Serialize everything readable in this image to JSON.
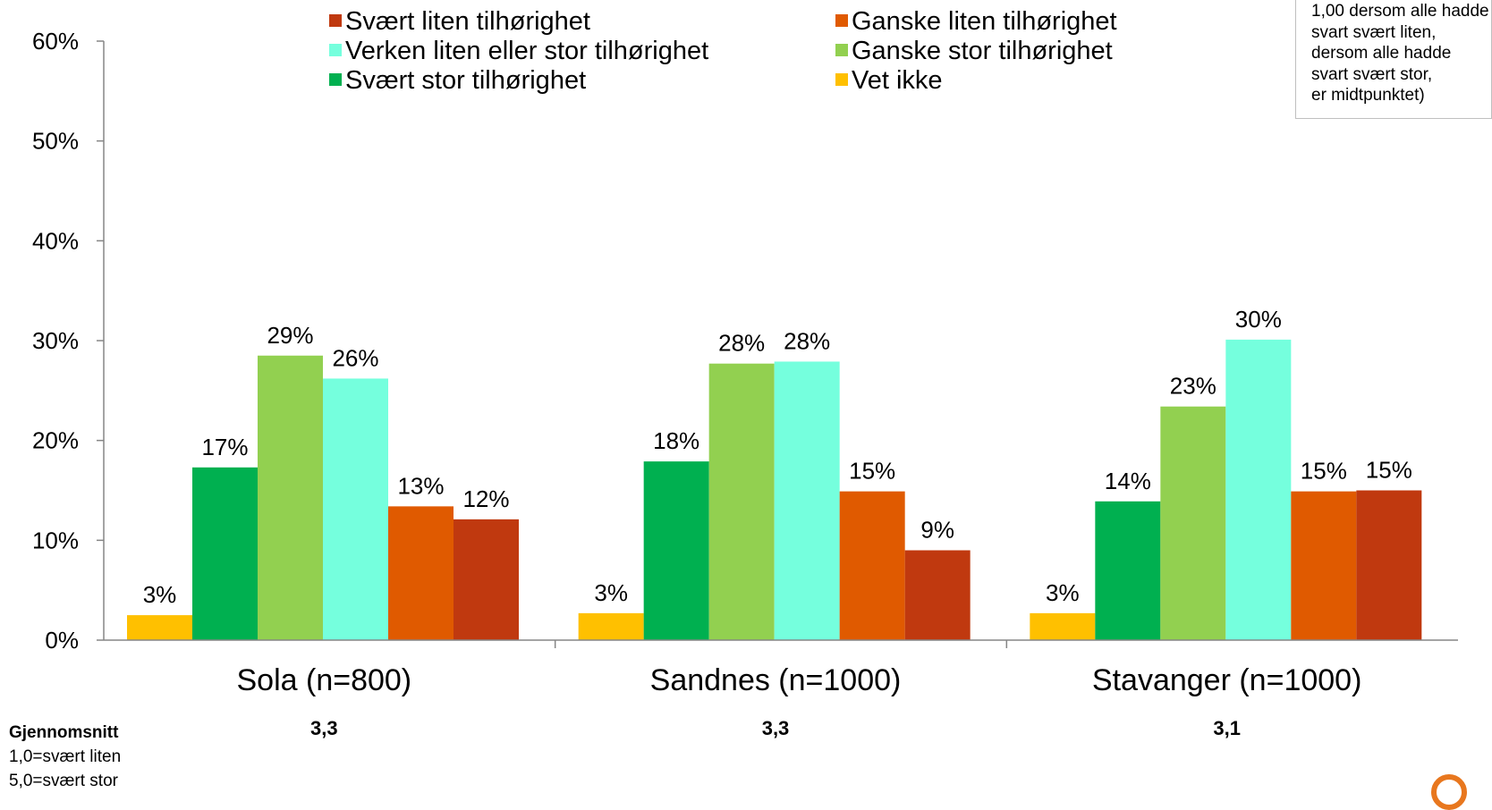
{
  "note": {
    "lines": [
      "1,00 dersom alle hadde",
      "svart  svært liten,",
      "dersom alle hadde",
      "svart svært stor,",
      "er midtpunktet)"
    ]
  },
  "averages": {
    "title": "Gjennomsnitt",
    "scale_low": "1,0=svært liten",
    "scale_high": "5,0=svært stor",
    "values": [
      "3,3",
      "3,3",
      "3,1"
    ]
  },
  "chart_data": {
    "type": "bar",
    "categories": [
      "Sola (n=800)",
      "Sandnes (n=1000)",
      "Stavanger (n=1000)"
    ],
    "series": [
      {
        "name": "Vet ikke",
        "color": "#ffc000",
        "values": [
          2.5,
          2.7,
          2.7
        ],
        "labels": [
          "3%",
          "3%",
          "3%"
        ]
      },
      {
        "name": "Svært stor tilhørighet",
        "color": "#00b050",
        "values": [
          17.3,
          17.9,
          13.9
        ],
        "labels": [
          "17%",
          "18%",
          "14%"
        ]
      },
      {
        "name": "Ganske stor tilhørighet",
        "color": "#92d050",
        "values": [
          28.5,
          27.7,
          23.4
        ],
        "labels": [
          "29%",
          "28%",
          "23%"
        ]
      },
      {
        "name": "Verken liten eller stor tilhørighet",
        "color": "#75ffdd",
        "values": [
          26.2,
          27.9,
          30.1
        ],
        "labels": [
          "26%",
          "28%",
          "30%"
        ]
      },
      {
        "name": "Ganske liten tilhørighet",
        "color": "#e05a00",
        "values": [
          13.4,
          14.9,
          14.9
        ],
        "labels": [
          "13%",
          "15%",
          "15%"
        ]
      },
      {
        "name": "Svært liten tilhørighet",
        "color": "#c0390f",
        "values": [
          12.1,
          9.0,
          15.0
        ],
        "labels": [
          "12%",
          "9%",
          "15%"
        ]
      }
    ],
    "legend_order": [
      "Svært liten tilhørighet",
      "Ganske liten tilhørighet",
      "Verken liten eller stor tilhørighet",
      "Ganske stor tilhørighet",
      "Svært stor tilhørighet",
      "Vet ikke"
    ],
    "y_ticks": [
      "0%",
      "10%",
      "20%",
      "30%",
      "40%",
      "50%",
      "60%"
    ],
    "ylim": [
      0,
      60
    ],
    "legend_position": "top",
    "grid": false
  }
}
